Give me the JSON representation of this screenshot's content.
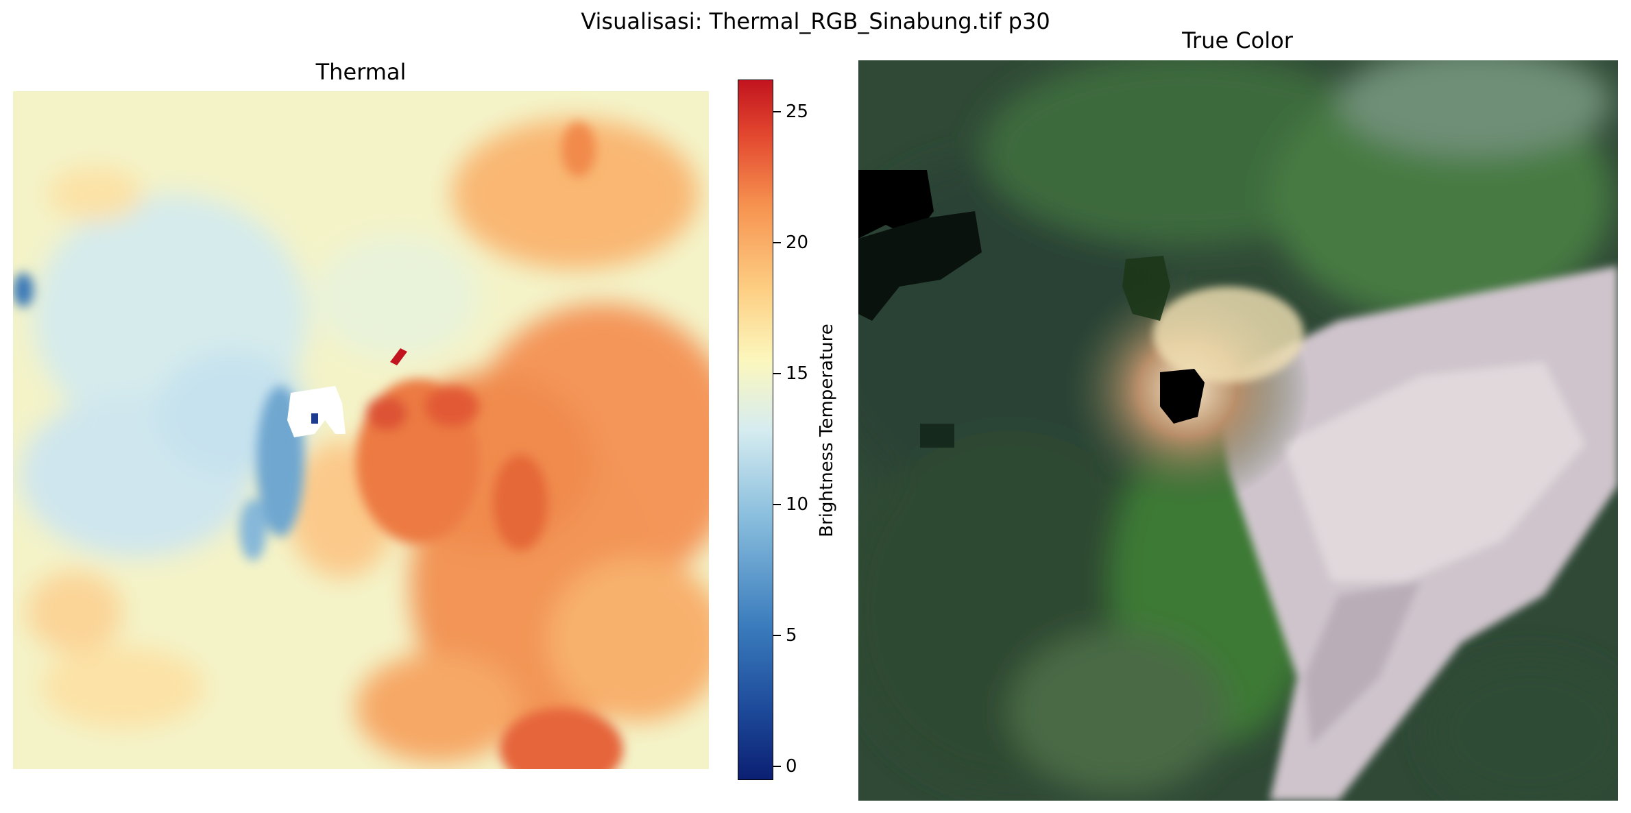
{
  "figure": {
    "suptitle": "Visualisasi: Thermal_RGB_Sinabung.tif p30"
  },
  "thermal_panel": {
    "title": "Thermal",
    "colormap": "RdYlBu_r",
    "colorbar": {
      "label": "Brightness Temperature",
      "range": [
        -0.6,
        26.2
      ],
      "ticks": [
        "0",
        "5",
        "10",
        "15",
        "20",
        "25"
      ],
      "colors": [
        "#0b1f72",
        "#3a7cbd",
        "#d6ecf0",
        "#fcf7bd",
        "#f69350",
        "#c2141f"
      ]
    }
  },
  "truecolor_panel": {
    "title": "True Color"
  }
}
